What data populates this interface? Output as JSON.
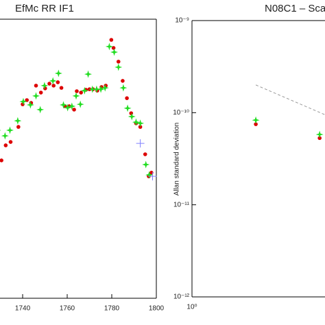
{
  "chart_data": [
    {
      "type": "scatter",
      "title": "EfMc RR IF1",
      "xlim": [
        1728.3,
        1800
      ],
      "xticks": [
        1740,
        1760,
        1780,
        1800
      ],
      "ylim": [
        0,
        100
      ],
      "series": [
        {
          "color": "#dd0000",
          "marker": "dot",
          "x": [
            1728.9,
            1730.5,
            1732.4,
            1734.6,
            1738.1,
            1740.0,
            1741.9,
            1743.8,
            1746.0,
            1748.2,
            1750.1,
            1752.0,
            1753.9,
            1755.8,
            1757.4,
            1759.0,
            1760.9,
            1763.1,
            1764.3,
            1766.2,
            1768.4,
            1770.0,
            1771.6,
            1773.5,
            1775.4,
            1777.3,
            1779.8,
            1780.8,
            1783.0,
            1784.9,
            1786.8,
            1788.7,
            1790.9,
            1792.8,
            1795.0,
            1796.6,
            1797.8
          ],
          "values": [
            56.5,
            49.4,
            54.8,
            56.0,
            61.4,
            69.5,
            71.0,
            70.0,
            76.2,
            73.7,
            75.2,
            76.9,
            76.2,
            77.4,
            75.4,
            68.8,
            68.8,
            67.6,
            74.2,
            73.7,
            74.7,
            74.9,
            74.9,
            74.4,
            75.7,
            76.2,
            92.6,
            89.7,
            84.8,
            77.9,
            71.7,
            66.3,
            62.7,
            61.4,
            51.6,
            43.7,
            45.0
          ]
        },
        {
          "color": "#22dd22",
          "marker": "star",
          "x": [
            1728.6,
            1732.1,
            1734.3,
            1737.8,
            1740.3,
            1743.5,
            1746.0,
            1747.9,
            1749.8,
            1753.6,
            1756.1,
            1758.3,
            1760.2,
            1762.1,
            1764.0,
            1765.9,
            1767.8,
            1769.4,
            1771.3,
            1773.2,
            1775.1,
            1777.0,
            1778.9,
            1781.1,
            1783.0,
            1785.2,
            1787.1,
            1789.0,
            1790.9,
            1792.8,
            1795.3,
            1796.8
          ],
          "values": [
            60.2,
            58.2,
            60.2,
            63.6,
            70.5,
            69.3,
            72.5,
            67.6,
            76.2,
            77.9,
            80.6,
            69.3,
            68.3,
            68.8,
            72.5,
            69.5,
            74.4,
            80.3,
            74.9,
            74.9,
            74.9,
            75.4,
            90.2,
            88.2,
            82.8,
            75.4,
            68.1,
            65.1,
            63.1,
            62.7,
            47.9,
            44.2
          ]
        },
        {
          "color": "#8080ff",
          "marker": "cross",
          "x": [
            1792.8,
            1798.3
          ],
          "values": [
            55.5,
            43.7
          ]
        }
      ]
    },
    {
      "type": "scatter",
      "title": "N08C1 – Sca",
      "ylabel": "Allan standard deviation",
      "log_x": true,
      "log_y": true,
      "xlim": [
        1,
        4.24
      ],
      "xticks": [
        {
          "value": 1,
          "label": "10⁰"
        }
      ],
      "ylim": [
        1e-12,
        1e-09
      ],
      "yticks": [
        {
          "value": 1e-12,
          "label": "10⁻¹²"
        },
        {
          "value": 1e-11,
          "label": "10⁻¹¹"
        },
        {
          "value": 1e-10,
          "label": "10⁻¹⁰"
        },
        {
          "value": 1e-09,
          "label": "10⁻⁹"
        }
      ],
      "series": [
        {
          "color": "#999999",
          "marker": "dashed-line",
          "x": [
            2,
            4.24
          ],
          "values": [
            2e-10,
            9.5e-11
          ]
        },
        {
          "color": "#dd0000",
          "marker": "dot",
          "x": [
            2,
            4
          ],
          "values": [
            7.5e-11,
            5.3e-11
          ]
        },
        {
          "color": "#22dd22",
          "marker": "star",
          "x": [
            2,
            4
          ],
          "values": [
            8.3e-11,
            5.8e-11
          ]
        }
      ]
    }
  ]
}
